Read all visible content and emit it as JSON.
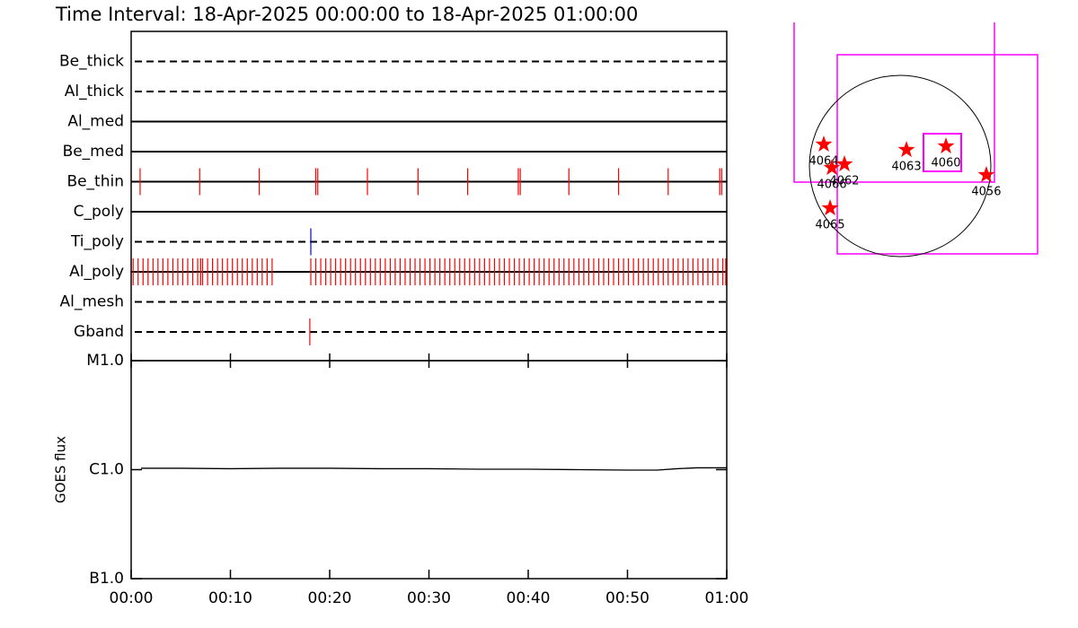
{
  "title": "Time Interval: 18-Apr-2025 00:00:00 to 18-Apr-2025 01:00:00",
  "chart_data": [
    {
      "type": "timeline",
      "xlim": [
        0,
        60
      ],
      "rows": [
        {
          "label": "Be_thick",
          "style": "dashed",
          "color": "#ff0000",
          "events": []
        },
        {
          "label": "Al_thick",
          "style": "dashed",
          "color": "#ff0000",
          "events": []
        },
        {
          "label": "Al_med",
          "style": "solid",
          "color": "#ff0000",
          "events": []
        },
        {
          "label": "Be_med",
          "style": "solid",
          "color": "#ff0000",
          "events": []
        },
        {
          "label": "Be_thin",
          "style": "solid",
          "color": "#ff0000",
          "events": [
            0.9,
            6.9,
            12.9,
            18.6,
            18.8,
            23.8,
            28.9,
            33.9,
            39.0,
            39.2,
            44.1,
            49.1,
            54.1,
            59.3,
            59.5
          ]
        },
        {
          "label": "C_poly",
          "style": "solid",
          "color": "#ff0000",
          "events": []
        },
        {
          "label": "Ti_poly",
          "style": "dashed",
          "color": "#0000ff",
          "events": [
            18.1
          ]
        },
        {
          "label": "Al_poly",
          "style": "solid",
          "color": "#ff0000",
          "events": [
            0.2,
            0.7,
            1.2,
            1.7,
            2.2,
            2.7,
            3.2,
            3.7,
            4.2,
            4.7,
            5.2,
            5.7,
            6.2,
            6.7,
            7.0,
            7.2,
            7.7,
            8.2,
            8.7,
            9.2,
            9.7,
            10.2,
            10.7,
            11.2,
            11.7,
            12.2,
            12.7,
            13.2,
            13.7,
            14.2,
            18.1,
            18.6,
            19.1,
            19.6,
            20.1,
            20.6,
            21.1,
            21.6,
            22.1,
            22.6,
            23.1,
            23.6,
            24.1,
            24.6,
            25.1,
            25.6,
            26.1,
            26.6,
            27.1,
            27.6,
            28.1,
            28.6,
            29.1,
            29.6,
            30.1,
            30.6,
            31.1,
            31.6,
            32.1,
            32.6,
            33.1,
            33.6,
            34.1,
            34.6,
            35.1,
            35.6,
            36.1,
            36.6,
            37.1,
            37.6,
            38.1,
            38.6,
            39.1,
            39.6,
            40.1,
            40.6,
            41.1,
            41.6,
            42.1,
            42.6,
            43.1,
            43.6,
            44.1,
            44.6,
            45.1,
            45.6,
            46.1,
            46.6,
            47.1,
            47.6,
            48.1,
            48.6,
            49.1,
            49.6,
            50.1,
            50.6,
            51.1,
            51.6,
            52.1,
            52.6,
            53.1,
            53.6,
            54.1,
            54.6,
            55.1,
            55.6,
            56.1,
            56.6,
            57.1,
            57.6,
            58.1,
            58.6,
            59.1,
            59.6,
            59.9
          ]
        },
        {
          "label": "Al_mesh",
          "style": "dashed",
          "color": "#ff0000",
          "events": []
        },
        {
          "label": "Gband",
          "style": "dashed",
          "color": "#ff0000",
          "events": [
            18.0
          ]
        }
      ]
    },
    {
      "type": "line",
      "ylabel": "GOES flux",
      "log": true,
      "color": "#000000",
      "xlim": [
        0,
        60
      ],
      "xticks": [
        {
          "value": 0,
          "label": "00:00"
        },
        {
          "value": 10,
          "label": "00:10"
        },
        {
          "value": 20,
          "label": "00:20"
        },
        {
          "value": 30,
          "label": "00:30"
        },
        {
          "value": 40,
          "label": "00:40"
        },
        {
          "value": 50,
          "label": "00:50"
        },
        {
          "value": 60,
          "label": "01:00"
        }
      ],
      "ylim": [
        1e-07,
        1e-05
      ],
      "yticks": [
        {
          "value": 1e-07,
          "label": "B1.0"
        },
        {
          "value": 1e-06,
          "label": "C1.0"
        },
        {
          "value": 1e-05,
          "label": "M1.0"
        }
      ],
      "x": [
        1,
        5,
        10,
        15,
        20,
        25,
        30,
        35,
        40,
        45,
        50,
        53,
        55,
        57,
        60
      ],
      "values": [
        1.03e-06,
        1.03e-06,
        1.02e-06,
        1.03e-06,
        1.03e-06,
        1.02e-06,
        1.02e-06,
        1.01e-06,
        1.01e-06,
        1e-06,
        9.9e-07,
        9.9e-07,
        1.02e-06,
        1.04e-06,
        1.04e-06
      ]
    },
    {
      "type": "map",
      "solar_radius": 960,
      "marker_color": "#ff0000",
      "regions": [
        {
          "label": "4064",
          "x": -808,
          "y": 228
        },
        {
          "label": "4066",
          "x": -722,
          "y": -19
        },
        {
          "label": "4062",
          "x": -589,
          "y": 19
        },
        {
          "label": "4063",
          "x": 67,
          "y": 171
        },
        {
          "label": "4060",
          "x": 485,
          "y": 209
        },
        {
          "label": "4056",
          "x": 912,
          "y": -95
        },
        {
          "label": "4065",
          "x": -741,
          "y": -447
        }
      ]
    }
  ]
}
